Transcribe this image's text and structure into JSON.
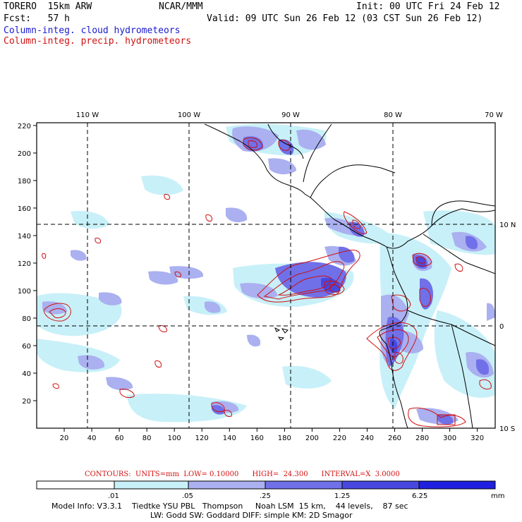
{
  "header": {
    "model": "TORERO  15km ARW",
    "org": "NCAR/MMM",
    "init": "Init: 00 UTC Fri 24 Feb 12",
    "fcst": "Fcst:   57 h",
    "valid": "Valid: 09 UTC Sun 26 Feb 12 (03 CST Sun 26 Feb 12)",
    "field1": "Column-integ. cloud hydrometeors",
    "field2": "Column-integ. precip. hydrometeors"
  },
  "map": {
    "lon_labels": [
      "110 W",
      "100 W",
      "90 W",
      "80 W",
      "70 W"
    ],
    "lat_labels": [
      "10 N",
      "0",
      "10 S"
    ],
    "x_ticks": [
      "20",
      "40",
      "60",
      "80",
      "100",
      "120",
      "140",
      "160",
      "180",
      "200",
      "220",
      "240",
      "260",
      "280",
      "300",
      "320"
    ],
    "y_ticks": [
      "20",
      "40",
      "60",
      "80",
      "100",
      "120",
      "140",
      "160",
      "180",
      "200",
      "220"
    ],
    "colors": {
      "cloud_1": "#c8f0f8",
      "cloud_2": "#aab0f0",
      "cloud_3": "#7070e8",
      "cloud_4": "#4848e0",
      "cloud_5": "#2020e0",
      "precip_contour": "#d01010"
    }
  },
  "contours": {
    "text": "CONTOURS:  UNITS=mm  LOW= 0.10000      HIGH=  24.300      INTERVAL=X  3.0000"
  },
  "legend": {
    "labels": [
      ".01",
      ".05",
      ".25",
      "1.25",
      "6.25"
    ],
    "unit": "mm"
  },
  "model_info": {
    "line1": "Model Info: V3.3.1    Tiedtke YSU PBL   Thompson     Noah LSM  15 km,    44 levels,    87 sec",
    "line2": "LW: Godd SW: Goddard DIFF: simple KM: 2D Smagor"
  }
}
